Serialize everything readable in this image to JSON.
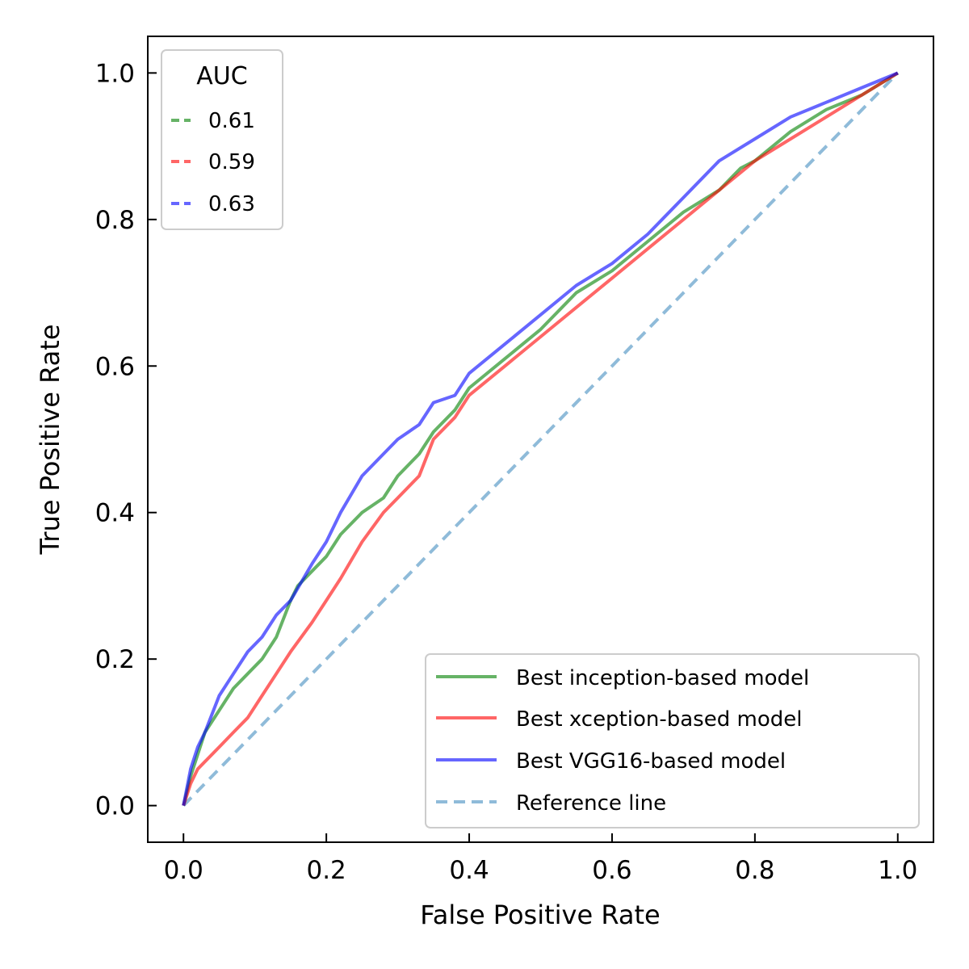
{
  "chart_data": {
    "type": "line",
    "title": "",
    "xlabel": "False Positive Rate",
    "ylabel": "True Positive Rate",
    "xlim": [
      -0.05,
      1.05
    ],
    "ylim": [
      -0.05,
      1.05
    ],
    "xticks": [
      0.0,
      0.2,
      0.4,
      0.6,
      0.8,
      1.0
    ],
    "yticks": [
      0.0,
      0.2,
      0.4,
      0.6,
      0.8,
      1.0
    ],
    "xtick_labels": [
      "0.0",
      "0.2",
      "0.4",
      "0.6",
      "0.8",
      "1.0"
    ],
    "ytick_labels": [
      "0.0",
      "0.2",
      "0.4",
      "0.6",
      "0.8",
      "1.0"
    ],
    "grid": false,
    "series": [
      {
        "name": "Best inception-based model",
        "auc_label": "0.61",
        "color": "#008000",
        "x": [
          0.0,
          0.01,
          0.02,
          0.03,
          0.05,
          0.07,
          0.09,
          0.11,
          0.13,
          0.15,
          0.16,
          0.18,
          0.2,
          0.22,
          0.25,
          0.28,
          0.3,
          0.33,
          0.35,
          0.38,
          0.4,
          0.45,
          0.5,
          0.55,
          0.6,
          0.65,
          0.7,
          0.75,
          0.78,
          0.8,
          0.85,
          0.9,
          0.95,
          1.0
        ],
        "y": [
          0.0,
          0.04,
          0.07,
          0.1,
          0.13,
          0.16,
          0.18,
          0.2,
          0.23,
          0.28,
          0.3,
          0.32,
          0.34,
          0.37,
          0.4,
          0.42,
          0.45,
          0.48,
          0.51,
          0.54,
          0.57,
          0.61,
          0.65,
          0.7,
          0.73,
          0.77,
          0.81,
          0.84,
          0.87,
          0.88,
          0.92,
          0.95,
          0.97,
          1.0
        ]
      },
      {
        "name": "Best xception-based model",
        "auc_label": "0.59",
        "color": "#ff0000",
        "x": [
          0.0,
          0.01,
          0.02,
          0.03,
          0.05,
          0.07,
          0.09,
          0.11,
          0.13,
          0.15,
          0.18,
          0.2,
          0.22,
          0.25,
          0.28,
          0.3,
          0.33,
          0.35,
          0.38,
          0.4,
          0.45,
          0.5,
          0.55,
          0.6,
          0.65,
          0.7,
          0.75,
          0.8,
          0.85,
          0.9,
          0.95,
          1.0
        ],
        "y": [
          0.0,
          0.03,
          0.05,
          0.06,
          0.08,
          0.1,
          0.12,
          0.15,
          0.18,
          0.21,
          0.25,
          0.28,
          0.31,
          0.36,
          0.4,
          0.42,
          0.45,
          0.5,
          0.53,
          0.56,
          0.6,
          0.64,
          0.68,
          0.72,
          0.76,
          0.8,
          0.84,
          0.88,
          0.91,
          0.94,
          0.97,
          1.0
        ]
      },
      {
        "name": "Best VGG16-based model",
        "auc_label": "0.63",
        "color": "#0000ff",
        "x": [
          0.0,
          0.01,
          0.02,
          0.03,
          0.05,
          0.07,
          0.09,
          0.11,
          0.13,
          0.15,
          0.18,
          0.2,
          0.22,
          0.25,
          0.28,
          0.3,
          0.33,
          0.35,
          0.38,
          0.4,
          0.45,
          0.5,
          0.55,
          0.6,
          0.65,
          0.7,
          0.75,
          0.8,
          0.85,
          0.9,
          0.95,
          1.0
        ],
        "y": [
          0.0,
          0.05,
          0.08,
          0.1,
          0.15,
          0.18,
          0.21,
          0.23,
          0.26,
          0.28,
          0.33,
          0.36,
          0.4,
          0.45,
          0.48,
          0.5,
          0.52,
          0.55,
          0.56,
          0.59,
          0.63,
          0.67,
          0.71,
          0.74,
          0.78,
          0.83,
          0.88,
          0.91,
          0.94,
          0.96,
          0.98,
          1.0
        ]
      },
      {
        "name": "Reference line",
        "color": "#1f77b4",
        "dashed": true,
        "x": [
          0.0,
          1.0
        ],
        "y": [
          0.0,
          1.0
        ]
      }
    ],
    "legends": [
      {
        "position": "top-left",
        "title": "AUC",
        "entries": [
          "0.61",
          "0.59",
          "0.63"
        ]
      },
      {
        "position": "lower-right",
        "title": "",
        "entries": [
          "Best inception-based model",
          "Best xception-based model",
          "Best VGG16-based model",
          "Reference line"
        ]
      }
    ]
  }
}
